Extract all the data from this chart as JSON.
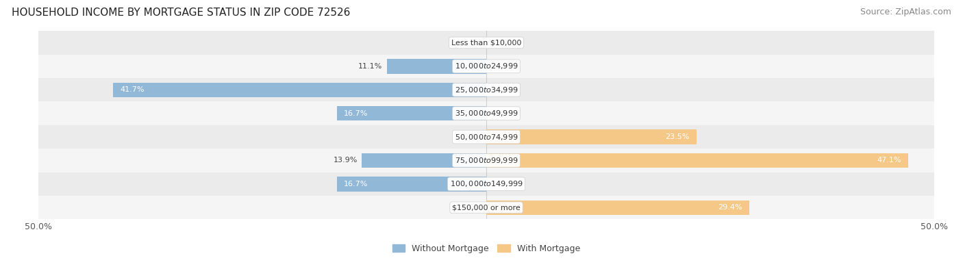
{
  "title": "HOUSEHOLD INCOME BY MORTGAGE STATUS IN ZIP CODE 72526",
  "source": "Source: ZipAtlas.com",
  "categories": [
    "Less than $10,000",
    "$10,000 to $24,999",
    "$25,000 to $34,999",
    "$35,000 to $49,999",
    "$50,000 to $74,999",
    "$75,000 to $99,999",
    "$100,000 to $149,999",
    "$150,000 or more"
  ],
  "without_mortgage": [
    0.0,
    11.1,
    41.7,
    16.7,
    0.0,
    13.9,
    16.7,
    0.0
  ],
  "with_mortgage": [
    0.0,
    0.0,
    0.0,
    0.0,
    23.5,
    47.1,
    0.0,
    29.4
  ],
  "without_color": "#92b8d8",
  "with_color": "#f5c888",
  "row_colors": [
    "#ebebeb",
    "#f5f5f5"
  ],
  "xlim": [
    -50,
    50
  ],
  "legend_without": "Without Mortgage",
  "legend_with": "With Mortgage",
  "title_fontsize": 11,
  "source_fontsize": 9,
  "bar_height": 0.62
}
